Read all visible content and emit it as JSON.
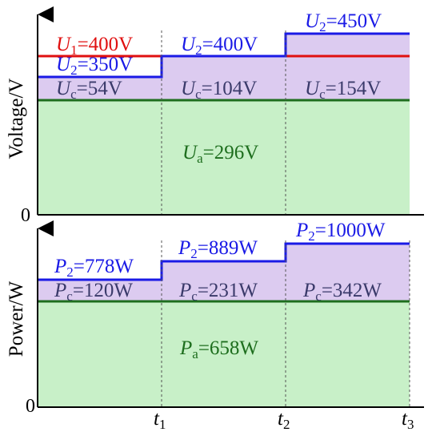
{
  "colors": {
    "green_fill": "#c8f0c8",
    "purple_fill": "#dccbf0",
    "green_line": "#1e6e1e",
    "blue_line": "#1a1ae6",
    "red_line": "#e01010",
    "axis": "#000000"
  },
  "voltage_panel": {
    "ylabel": "Voltage/V",
    "zero": "0",
    "labels": {
      "u1": {
        "sym": "U",
        "sub": "1",
        "val": "=400V"
      },
      "u2_a": {
        "sym": "U",
        "sub": "2",
        "val": "=350V"
      },
      "u2_b": {
        "sym": "U",
        "sub": "2",
        "val": "=400V"
      },
      "u2_c": {
        "sym": "U",
        "sub": "2",
        "val": "=450V"
      },
      "uc_a": {
        "sym": "U",
        "sub": "c",
        "val": "=54V"
      },
      "uc_b": {
        "sym": "U",
        "sub": "c",
        "val": "=104V"
      },
      "uc_c": {
        "sym": "U",
        "sub": "c",
        "val": "=154V"
      },
      "ua": {
        "sym": "U",
        "sub": "a",
        "val": "=296V"
      }
    }
  },
  "power_panel": {
    "ylabel": "Power/W",
    "zero": "0",
    "labels": {
      "p2_a": {
        "sym": "P",
        "sub": "2",
        "val": "=778W"
      },
      "p2_b": {
        "sym": "P",
        "sub": "2",
        "val": "=889W"
      },
      "p2_c": {
        "sym": "P",
        "sub": "2",
        "val": "=1000W"
      },
      "pc_a": {
        "sym": "P",
        "sub": "c",
        "val": "=120W"
      },
      "pc_b": {
        "sym": "P",
        "sub": "c",
        "val": "=231W"
      },
      "pc_c": {
        "sym": "P",
        "sub": "c",
        "val": "=342W"
      },
      "pa": {
        "sym": "P",
        "sub": "a",
        "val": "=658W"
      }
    }
  },
  "time_ticks": [
    {
      "sym": "t",
      "sub": "1"
    },
    {
      "sym": "t",
      "sub": "2"
    },
    {
      "sym": "t",
      "sub": "3"
    }
  ]
}
